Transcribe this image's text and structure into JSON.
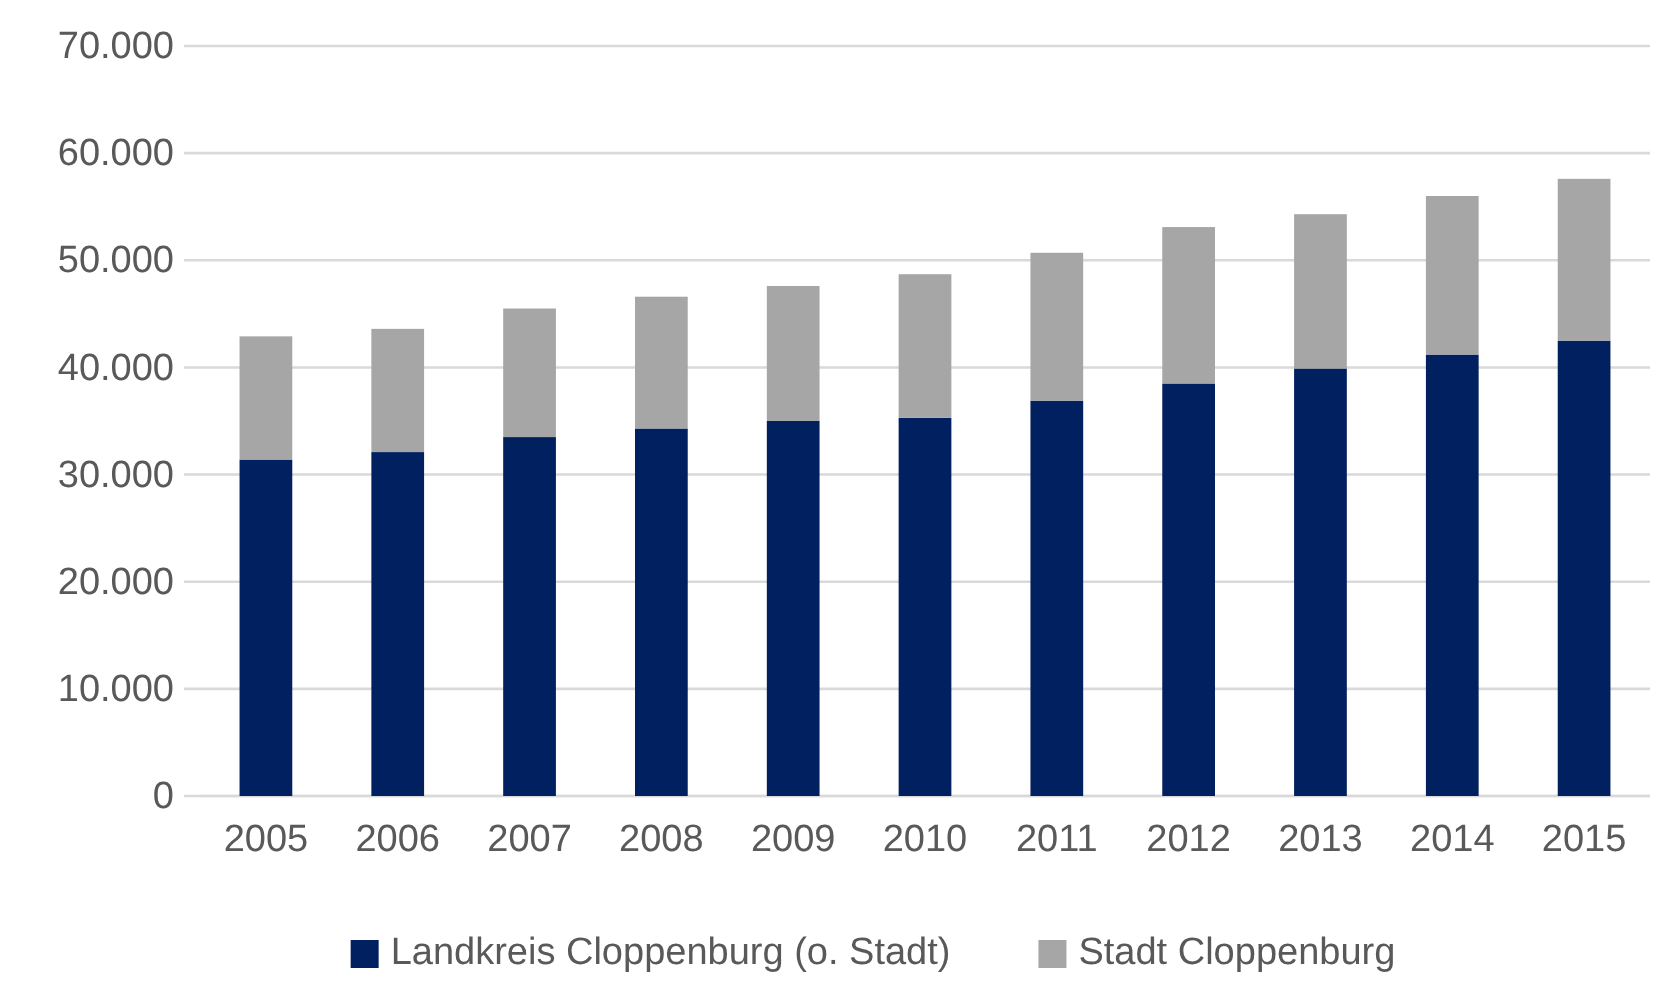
{
  "chart_data": {
    "type": "bar",
    "stacked": true,
    "categories": [
      "2005",
      "2006",
      "2007",
      "2008",
      "2009",
      "2010",
      "2011",
      "2012",
      "2013",
      "2014",
      "2015"
    ],
    "series": [
      {
        "name": "Landkreis Cloppenburg (o. Stadt)",
        "color": "#002060",
        "values": [
          31400,
          32100,
          33500,
          34300,
          35000,
          35300,
          36900,
          38500,
          39900,
          41200,
          42500
        ]
      },
      {
        "name": "Stadt Cloppenburg",
        "color": "#a6a6a6",
        "values": [
          11500,
          11500,
          12000,
          12300,
          12600,
          13400,
          13800,
          14600,
          14400,
          14800,
          15100
        ]
      }
    ],
    "ylim": [
      0,
      70000
    ],
    "yticks": [
      {
        "value": 0,
        "label": "0"
      },
      {
        "value": 10000,
        "label": "10.000"
      },
      {
        "value": 20000,
        "label": "20.000"
      },
      {
        "value": 30000,
        "label": "30.000"
      },
      {
        "value": 40000,
        "label": "40.000"
      },
      {
        "value": 50000,
        "label": "50.000"
      },
      {
        "value": 60000,
        "label": "60.000"
      },
      {
        "value": 70000,
        "label": "70.000"
      }
    ],
    "grid": "y",
    "legend": "bottom"
  }
}
